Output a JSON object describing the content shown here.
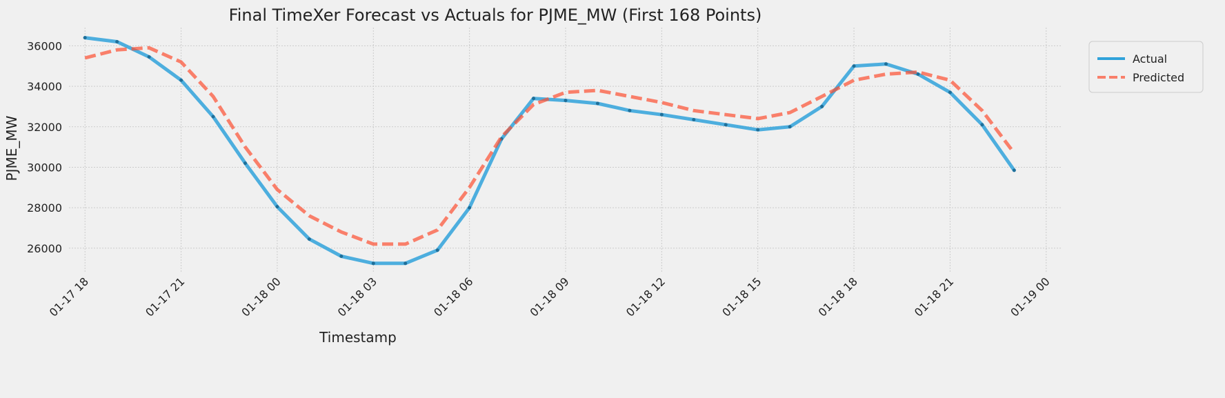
{
  "chart_data": {
    "type": "line",
    "title": "Final TimeXer Forecast vs Actuals for PJME_MW (First 168 Points)",
    "xlabel": "Timestamp",
    "ylabel": "PJME_MW",
    "ylim": [
      24800,
      36900
    ],
    "yticks": [
      26000,
      28000,
      30000,
      32000,
      34000,
      36000
    ],
    "xlim": [
      "2018-01-17 17:30",
      "2018-01-19 00:30"
    ],
    "xticks": [
      {
        "t": "2018-01-17 18:00",
        "label": "01-17 18"
      },
      {
        "t": "2018-01-17 21:00",
        "label": "01-17 21"
      },
      {
        "t": "2018-01-18 00:00",
        "label": "01-18 00"
      },
      {
        "t": "2018-01-18 03:00",
        "label": "01-18 03"
      },
      {
        "t": "2018-01-18 06:00",
        "label": "01-18 06"
      },
      {
        "t": "2018-01-18 09:00",
        "label": "01-18 09"
      },
      {
        "t": "2018-01-18 12:00",
        "label": "01-18 12"
      },
      {
        "t": "2018-01-18 15:00",
        "label": "01-18 15"
      },
      {
        "t": "2018-01-18 18:00",
        "label": "01-18 18"
      },
      {
        "t": "2018-01-18 21:00",
        "label": "01-18 21"
      },
      {
        "t": "2018-01-19 00:00",
        "label": "01-19 00"
      }
    ],
    "grid": true,
    "legend_position": "top-right",
    "series": [
      {
        "name": "Actual",
        "color": "#30a2da",
        "style": "solid",
        "points": [
          [
            "2018-01-17 18:00",
            36400
          ],
          [
            "2018-01-17 19:00",
            36200
          ],
          [
            "2018-01-17 20:00",
            35450
          ],
          [
            "2018-01-17 21:00",
            34300
          ],
          [
            "2018-01-17 22:00",
            32500
          ],
          [
            "2018-01-17 23:00",
            30200
          ],
          [
            "2018-01-18 00:00",
            28050
          ],
          [
            "2018-01-18 01:00",
            26450
          ],
          [
            "2018-01-18 02:00",
            25600
          ],
          [
            "2018-01-18 03:00",
            25250
          ],
          [
            "2018-01-18 04:00",
            25250
          ],
          [
            "2018-01-18 05:00",
            25900
          ],
          [
            "2018-01-18 06:00",
            28000
          ],
          [
            "2018-01-18 07:00",
            31400
          ],
          [
            "2018-01-18 08:00",
            33400
          ],
          [
            "2018-01-18 09:00",
            33300
          ],
          [
            "2018-01-18 10:00",
            33150
          ],
          [
            "2018-01-18 11:00",
            32800
          ],
          [
            "2018-01-18 12:00",
            32600
          ],
          [
            "2018-01-18 13:00",
            32350
          ],
          [
            "2018-01-18 14:00",
            32100
          ],
          [
            "2018-01-18 15:00",
            31850
          ],
          [
            "2018-01-18 16:00",
            32000
          ],
          [
            "2018-01-18 17:00",
            33000
          ],
          [
            "2018-01-18 18:00",
            35000
          ],
          [
            "2018-01-18 19:00",
            35100
          ],
          [
            "2018-01-18 20:00",
            34600
          ],
          [
            "2018-01-18 21:00",
            33700
          ],
          [
            "2018-01-18 22:00",
            32100
          ],
          [
            "2018-01-18 23:00",
            29850
          ]
        ]
      },
      {
        "name": "Predicted",
        "color": "#fc4f30",
        "style": "dashed",
        "points": [
          [
            "2018-01-17 18:00",
            35400
          ],
          [
            "2018-01-17 19:00",
            35800
          ],
          [
            "2018-01-17 20:00",
            35900
          ],
          [
            "2018-01-17 21:00",
            35200
          ],
          [
            "2018-01-17 22:00",
            33500
          ],
          [
            "2018-01-17 23:00",
            31000
          ],
          [
            "2018-01-18 00:00",
            28900
          ],
          [
            "2018-01-18 01:00",
            27600
          ],
          [
            "2018-01-18 02:00",
            26800
          ],
          [
            "2018-01-18 03:00",
            26200
          ],
          [
            "2018-01-18 04:00",
            26200
          ],
          [
            "2018-01-18 05:00",
            26900
          ],
          [
            "2018-01-18 06:00",
            29000
          ],
          [
            "2018-01-18 07:00",
            31500
          ],
          [
            "2018-01-18 08:00",
            33100
          ],
          [
            "2018-01-18 09:00",
            33700
          ],
          [
            "2018-01-18 10:00",
            33800
          ],
          [
            "2018-01-18 11:00",
            33500
          ],
          [
            "2018-01-18 12:00",
            33200
          ],
          [
            "2018-01-18 13:00",
            32800
          ],
          [
            "2018-01-18 14:00",
            32600
          ],
          [
            "2018-01-18 15:00",
            32400
          ],
          [
            "2018-01-18 16:00",
            32700
          ],
          [
            "2018-01-18 17:00",
            33500
          ],
          [
            "2018-01-18 18:00",
            34300
          ],
          [
            "2018-01-18 19:00",
            34600
          ],
          [
            "2018-01-18 20:00",
            34700
          ],
          [
            "2018-01-18 21:00",
            34300
          ],
          [
            "2018-01-18 22:00",
            32800
          ],
          [
            "2018-01-18 23:00",
            30700
          ]
        ]
      }
    ]
  }
}
